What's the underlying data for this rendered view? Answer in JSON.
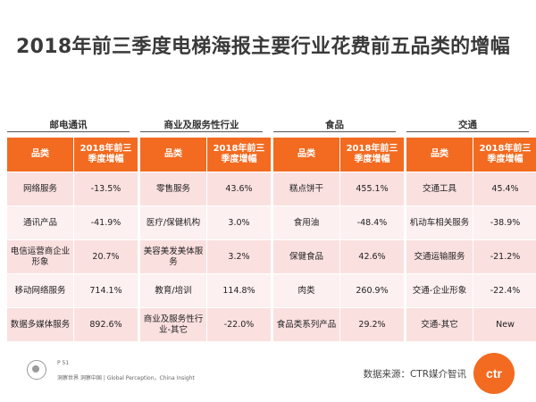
{
  "title": "2018年前三季度电梯海报主要行业花费前五品类的增幅",
  "blocks": [
    {
      "name": "邮电通讯",
      "header": [
        "品类",
        "2018年前三季度增幅"
      ],
      "rows": [
        [
          "网络服务",
          "-13.5%"
        ],
        [
          "通讯产品",
          "-41.9%"
        ],
        [
          "电信运营商企业形象",
          "20.7%"
        ],
        [
          "移动网络服务",
          "714.1%"
        ],
        [
          "数据多媒体服务",
          "892.6%"
        ]
      ]
    },
    {
      "name": "商业及服务性行业",
      "header": [
        "品类",
        "2018年前三季度增幅"
      ],
      "rows": [
        [
          "零售服务",
          "43.6%"
        ],
        [
          "医疗/保健机构",
          "3.0%"
        ],
        [
          "美容美发美体服务",
          "3.2%"
        ],
        [
          "教育/培训",
          "114.8%"
        ],
        [
          "商业及服务性行业-其它",
          "-22.0%"
        ]
      ]
    },
    {
      "name": "食品",
      "header": [
        "品类",
        "2018年前三季度增幅"
      ],
      "rows": [
        [
          "糕点饼干",
          "455.1%"
        ],
        [
          "食用油",
          "-48.4%"
        ],
        [
          "保健食品",
          "42.6%"
        ],
        [
          "肉类",
          "260.9%"
        ],
        [
          "食品类系列产品",
          "29.2%"
        ]
      ]
    },
    {
      "name": "交通",
      "header": [
        "品类",
        "2018年前三季度增幅"
      ],
      "rows": [
        [
          "交通工具",
          "45.4%"
        ],
        [
          "机动车相关服务",
          "-38.9%"
        ],
        [
          "交通运输服务",
          "-21.2%"
        ],
        [
          "交通-企业形象",
          "-22.4%"
        ],
        [
          "交通-其它",
          "New"
        ]
      ]
    }
  ],
  "footer": {
    "page": "P 51",
    "slogan": "洞察世界 洞察中国 | Global Perception，China Insight",
    "source": "数据来源：CTR媒介智讯",
    "logo": "ctr"
  },
  "colors": {
    "header_orange": "#f26b21",
    "row_pink": "#fbe0e0",
    "row_light": "#fdf0f0"
  }
}
